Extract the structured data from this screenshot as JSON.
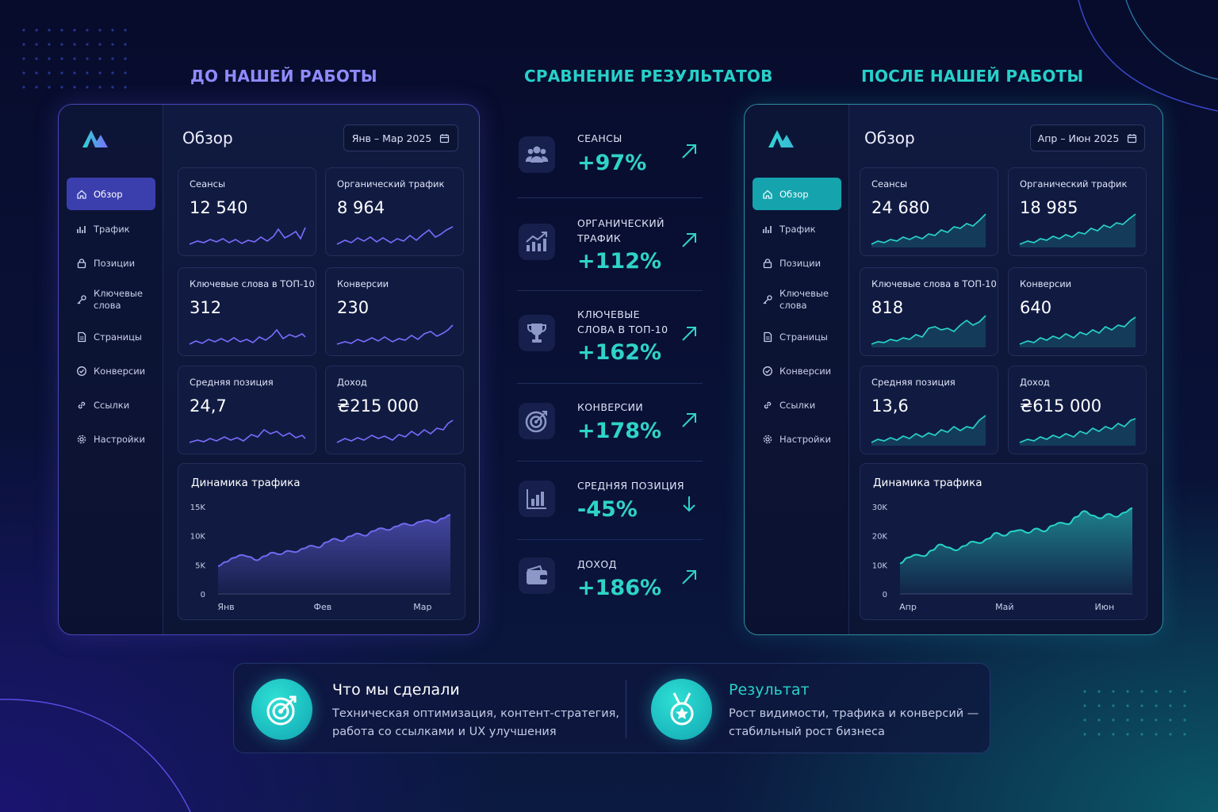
{
  "headings": {
    "before": "ДО НАШЕЙ РАБОТЫ",
    "compare": "СРАВНЕНИЕ РЕЗУЛЬТАТОВ",
    "after": "ПОСЛЕ НАШЕЙ РАБОТЫ"
  },
  "colors": {
    "before_heading": "#8f8bff",
    "compare_heading": "#27d0c9",
    "after_heading": "#27d0c9",
    "before_accent": "#6f6af0",
    "after_accent": "#27d3c8"
  },
  "nav": [
    {
      "label": "Обзор",
      "icon": "home-icon"
    },
    {
      "label": "Трафик",
      "icon": "chart-bars-icon"
    },
    {
      "label": "Позиции",
      "icon": "lock-icon"
    },
    {
      "label": "Ключевые слова",
      "icon": "key-icon"
    },
    {
      "label": "Страницы",
      "icon": "document-icon"
    },
    {
      "label": "Конверсии",
      "icon": "badge-check-icon"
    },
    {
      "label": "Ссылки",
      "icon": "link-icon"
    },
    {
      "label": "Настройки",
      "icon": "gear-icon"
    }
  ],
  "before": {
    "title": "Обзор",
    "date_range": "Янв – Мар 2025",
    "cards": [
      {
        "label": "Сеансы",
        "value": "12 540"
      },
      {
        "label": "Органический трафик",
        "value": "8 964"
      },
      {
        "label": "Ключевые слова в ТОП-10",
        "value": "312"
      },
      {
        "label": "Конверсии",
        "value": "230"
      },
      {
        "label": "Средняя позиция",
        "value": "24,7"
      },
      {
        "label": "Доход",
        "value": "₴215 000"
      }
    ],
    "chart_title": "Динамика трафика"
  },
  "after": {
    "title": "Обзор",
    "date_range": "Апр – Июн 2025",
    "cards": [
      {
        "label": "Сеансы",
        "value": "24 680"
      },
      {
        "label": "Органический трафик",
        "value": "18 985"
      },
      {
        "label": "Ключевые слова в ТОП-10",
        "value": "818"
      },
      {
        "label": "Конверсии",
        "value": "640"
      },
      {
        "label": "Средняя позиция",
        "value": "13,6"
      },
      {
        "label": "Доход",
        "value": "₴615 000"
      }
    ],
    "chart_title": "Динамика трафика"
  },
  "comparison": [
    {
      "name": "СЕАНСЫ",
      "pct": "+97%",
      "icon": "users-icon",
      "trend": "up"
    },
    {
      "name": "ОРГАНИЧЕСКИЙ ТРАФИК",
      "pct": "+112%",
      "icon": "growth-chart-icon",
      "trend": "up"
    },
    {
      "name": "КЛЮЧЕВЫЕ СЛОВА В ТОП-10",
      "pct": "+162%",
      "icon": "trophy-icon",
      "trend": "up"
    },
    {
      "name": "КОНВЕРСИИ",
      "pct": "+178%",
      "icon": "target-icon",
      "trend": "up"
    },
    {
      "name": "СРЕДНЯЯ ПОЗИЦИЯ",
      "pct": "-45%",
      "icon": "bar-chart-icon",
      "trend": "down"
    },
    {
      "name": "ДОХОД",
      "pct": "+186%",
      "icon": "wallet-icon",
      "trend": "up"
    }
  ],
  "bottom": {
    "did_title": "Что мы сделали",
    "did_text_1": "Техническая оптимизация, контент-стратегия,",
    "did_text_2": "работа со ссылками и UX улучшения",
    "result_title": "Результат",
    "result_text_1": "Рост видимости, трафика и конверсий —",
    "result_text_2": "стабильный рост бизнеса"
  },
  "chart_data": [
    {
      "type": "area",
      "title": "Динамика трафика",
      "x_tick_labels": [
        "Янв",
        "Фев",
        "Мар"
      ],
      "y_tick_labels": [
        "0",
        "5K",
        "10K",
        "15K"
      ],
      "ylim": [
        0,
        15000
      ],
      "series": [
        {
          "values": [
            4800,
            5500,
            6200,
            6700,
            6400,
            5800,
            6500,
            7100,
            6800,
            7400,
            7200,
            7800,
            8300,
            8000,
            8900,
            9500,
            9100,
            9900,
            10400,
            10000,
            10800,
            11300,
            11000,
            11600,
            12100,
            11800,
            12400,
            12700,
            12300,
            13000,
            13600
          ]
        }
      ]
    },
    {
      "type": "area",
      "title": "Динамика трафика",
      "x_tick_labels": [
        "Апр",
        "Май",
        "Июн"
      ],
      "y_tick_labels": [
        "0",
        "10K",
        "20K",
        "30K"
      ],
      "ylim": [
        0,
        30000
      ],
      "series": [
        {
          "values": [
            10500,
            12500,
            13500,
            13000,
            15000,
            17000,
            16000,
            15000,
            16500,
            18000,
            17500,
            19000,
            21000,
            20000,
            21500,
            22000,
            21000,
            22500,
            21500,
            23500,
            24500,
            24000,
            26500,
            28500,
            27000,
            26000,
            27500,
            26500,
            28000,
            29500
          ]
        }
      ]
    }
  ]
}
